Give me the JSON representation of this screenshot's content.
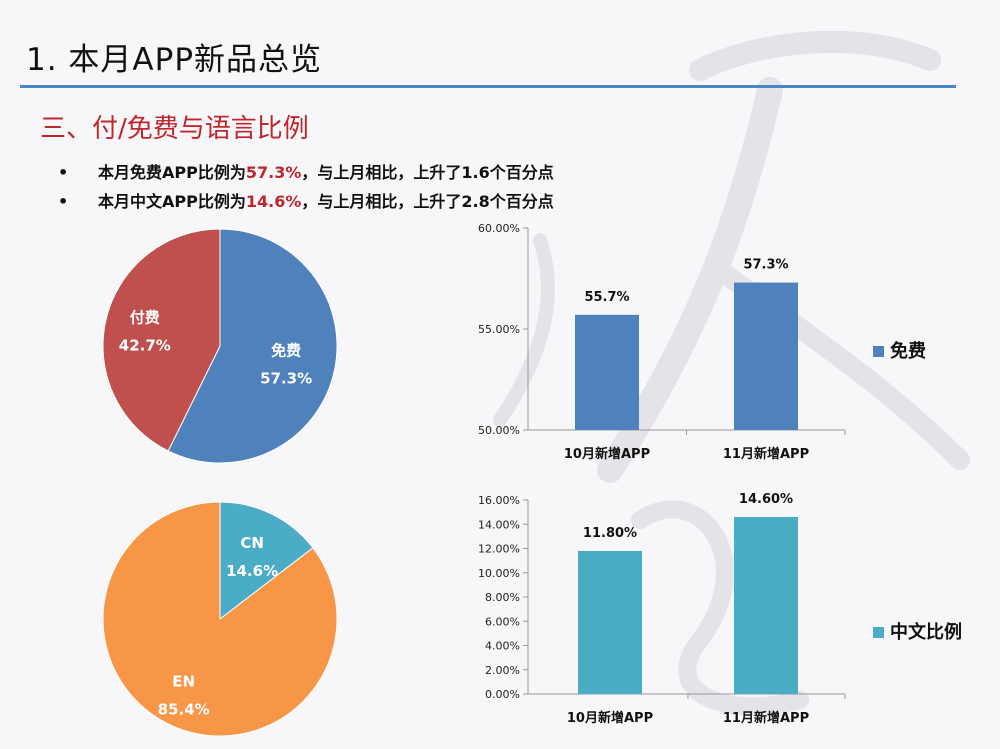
{
  "page": {
    "title": "1. 本月APP新品总览",
    "section": "三、付/免费与语言比例",
    "bullets": [
      {
        "prefix": "本月免费APP比例为",
        "highlight": "57.3%",
        "suffix": "，与上月相比，上升了1.6个百分点"
      },
      {
        "prefix": "本月中文APP比例为",
        "highlight": "14.6%",
        "suffix": "，与上月相比，上升了2.8个百分点"
      }
    ],
    "bullet_mark": "•"
  },
  "colors": {
    "title_rule": "#4a86c5",
    "heading_red": "#c0272d",
    "free_blue": "#4f81bd",
    "paid_red": "#c0504d",
    "cn_teal": "#4bacc6",
    "en_orange": "#f79646",
    "axis_grey": "#999999"
  },
  "chart_data": [
    {
      "type": "pie",
      "slices": [
        {
          "label": "免费",
          "value": 57.3,
          "display": "57.3%",
          "color": "#4f81bd"
        },
        {
          "label": "付费",
          "value": 42.7,
          "display": "42.7%",
          "color": "#c0504d"
        }
      ]
    },
    {
      "type": "bar",
      "categories": [
        "10月新增APP",
        "11月新增APP"
      ],
      "series": [
        {
          "name": "免费",
          "values": [
            55.7,
            57.3
          ],
          "labels": [
            "55.7%",
            "57.3%"
          ],
          "color": "#4f81bd"
        }
      ],
      "ylim": [
        50,
        60
      ],
      "yticks": [
        "50.00%",
        "55.00%",
        "60.00%"
      ],
      "legend": "right"
    },
    {
      "type": "pie",
      "slices": [
        {
          "label": "CN",
          "value": 14.6,
          "display": "14.6%",
          "color": "#4bacc6"
        },
        {
          "label": "EN",
          "value": 85.4,
          "display": "85.4%",
          "color": "#f79646"
        }
      ]
    },
    {
      "type": "bar",
      "categories": [
        "10月新增APP",
        "11月新增APP"
      ],
      "series": [
        {
          "name": "中文比例",
          "values": [
            11.8,
            14.6
          ],
          "labels": [
            "11.80%",
            "14.60%"
          ],
          "color": "#4bacc6"
        }
      ],
      "ylim": [
        0,
        16
      ],
      "yticks": [
        "0.00%",
        "2.00%",
        "4.00%",
        "6.00%",
        "8.00%",
        "10.00%",
        "12.00%",
        "14.00%",
        "16.00%"
      ],
      "legend": "right"
    }
  ]
}
